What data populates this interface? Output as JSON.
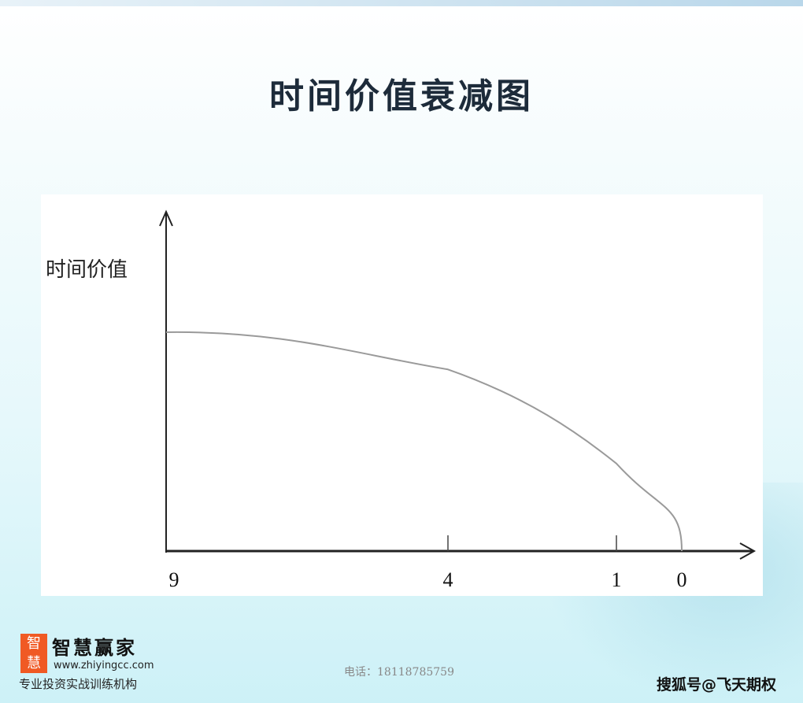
{
  "title": "时间价值衰减图",
  "chart_data": {
    "type": "line",
    "ylabel": "时间价值",
    "xlabel": "",
    "x_ticks": [
      "9",
      "4",
      "1",
      "0"
    ],
    "series": [
      {
        "points": [
          {
            "x": "9",
            "y": 1.0
          },
          {
            "x": "4",
            "y": 0.83
          },
          {
            "x": "1",
            "y": 0.4
          },
          {
            "x": "0",
            "y": 0.0
          }
        ]
      }
    ],
    "grid": false,
    "line_color": "#9a9a9a"
  },
  "footer": {
    "logo_text": "智慧赢家",
    "brand": "智慧赢家",
    "url": "www.zhiyingcc.com",
    "slogan": "专业投资实战训练机构",
    "phone": "电话：18118785759",
    "watermark": "搜狐号@飞天期权"
  }
}
